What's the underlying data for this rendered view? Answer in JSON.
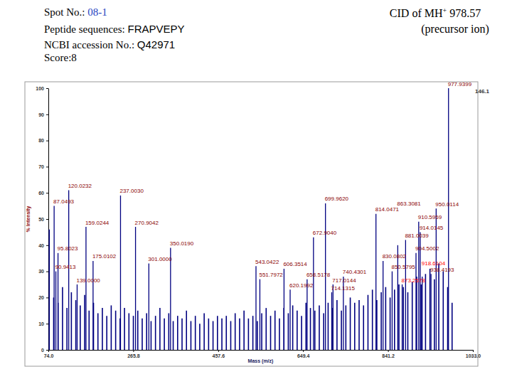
{
  "header": [
    {
      "label": "Spot No.: ",
      "value": "08-1"
    },
    {
      "label": "Peptide sequences: ",
      "value": "FRAPVEPY"
    },
    {
      "label": "NCBI accession No.: ",
      "value": "Q42971"
    },
    {
      "label": "Score:",
      "value": "8"
    }
  ],
  "chart_data": {
    "type": "stick",
    "title": [
      "CID of MH",
      "+",
      " 978.57"
    ],
    "subtitle": "(precursor ion)",
    "xlabel": "Mass (m/z)",
    "ylabel": "% Intensity",
    "annotations": [
      "146.1"
    ],
    "color": "#000080",
    "xlim": [
      74,
      1033
    ],
    "xticks": [
      {
        "value": 74,
        "label": "74.0"
      },
      {
        "value": 265.8,
        "label": "265.8"
      },
      {
        "value": 457.6,
        "label": "457.6"
      },
      {
        "value": 649.4,
        "label": "649.4"
      },
      {
        "value": 841.2,
        "label": "841.2"
      },
      {
        "value": 1033,
        "label": "1033.0"
      }
    ],
    "ylim": [
      0,
      100
    ],
    "yticks": [
      0,
      10,
      20,
      30,
      40,
      50,
      60,
      70,
      80,
      90,
      100
    ],
    "grid": false,
    "series": [
      {
        "x": [
          76,
          86,
          96,
          106,
          116,
          126,
          136,
          146,
          156,
          166,
          176,
          186,
          196,
          206,
          216,
          226,
          236,
          246,
          256,
          266,
          276,
          286,
          296,
          306,
          316,
          326,
          336,
          346,
          356,
          366,
          376,
          386,
          396,
          406,
          416,
          426,
          436,
          446,
          456,
          466,
          476,
          486,
          496,
          506,
          516,
          526,
          536,
          546,
          556,
          566,
          576,
          586,
          596,
          606,
          616,
          626,
          636,
          646,
          656,
          666,
          676,
          686,
          696,
          706,
          716,
          726,
          736,
          746,
          756,
          766,
          776,
          786,
          796,
          806,
          816,
          826,
          836,
          846,
          856,
          866,
          876,
          886,
          896,
          906,
          916,
          926,
          936,
          946,
          956,
          966,
          976,
          986
        ],
        "values": [
          46,
          20,
          18,
          24,
          16,
          22,
          19,
          17,
          21,
          15,
          18,
          14,
          16,
          13,
          17,
          15,
          12,
          16,
          14,
          13,
          15,
          12,
          14,
          11,
          13,
          16,
          12,
          14,
          11,
          13,
          12,
          15,
          11,
          13,
          10,
          14,
          12,
          11,
          13,
          12,
          13,
          11,
          14,
          12,
          15,
          12,
          13,
          11,
          14,
          16,
          13,
          15,
          12,
          16,
          14,
          17,
          15,
          13,
          18,
          16,
          15,
          17,
          14,
          18,
          16,
          19,
          15,
          17,
          20,
          18,
          19,
          17,
          21,
          23,
          19,
          22,
          24,
          20,
          23,
          25,
          24,
          22,
          26,
          28,
          25,
          29,
          31,
          27,
          33,
          30,
          24,
          18
        ]
      },
      {
        "color": "#8b0000",
        "x": [
          87.0493,
          95.8023,
          90.9413,
          120.0232,
          139.0,
          159.0244,
          175.0102,
          237.003,
          270.9042,
          301.0,
          350.019,
          543.0422,
          551.7972,
          606.3514,
          620.1992,
          658.5178,
          672.904,
          699.962,
          714.1315,
          717.0144,
          740.4301,
          814.0471,
          830.0802,
          850.5795,
          863.3081,
          881.0039,
          904.5002,
          910.5959,
          914.0145,
          938.4193,
          950.0114,
          977.9399
        ],
        "values": [
          55,
          37,
          30,
          61,
          25,
          47,
          34,
          59,
          47,
          33,
          39,
          32,
          27,
          31,
          23,
          27,
          43,
          56,
          22,
          25,
          28,
          52,
          34,
          30,
          40,
          42,
          37,
          49,
          45,
          29,
          54,
          100
        ],
        "labels": [
          "87.0493",
          "95.8023",
          "90.9413",
          "120.0232",
          "139.0000",
          "159.0244",
          "175.0102",
          "237.0030",
          "270.9042",
          "301.0000",
          "350.0190",
          "543.0422",
          "551.7972",
          "606.3514",
          "620.1992",
          "658.5178",
          "672.9040",
          "699.9620",
          "714.1315",
          "717.0144",
          "740.4301",
          "814.0471",
          "830.0802",
          "850.5795",
          "863.3081",
          "881.0039",
          "904.5002",
          "910.5959",
          "914.0145",
          "938.4193",
          "950.0114",
          "977.9399"
        ]
      },
      {
        "color": "#ff0000",
        "x": [
          873.2578,
          918.6104
        ],
        "values": [
          25,
          28
        ],
        "labels": [
          "873.2578",
          "918.6104"
        ]
      }
    ]
  }
}
